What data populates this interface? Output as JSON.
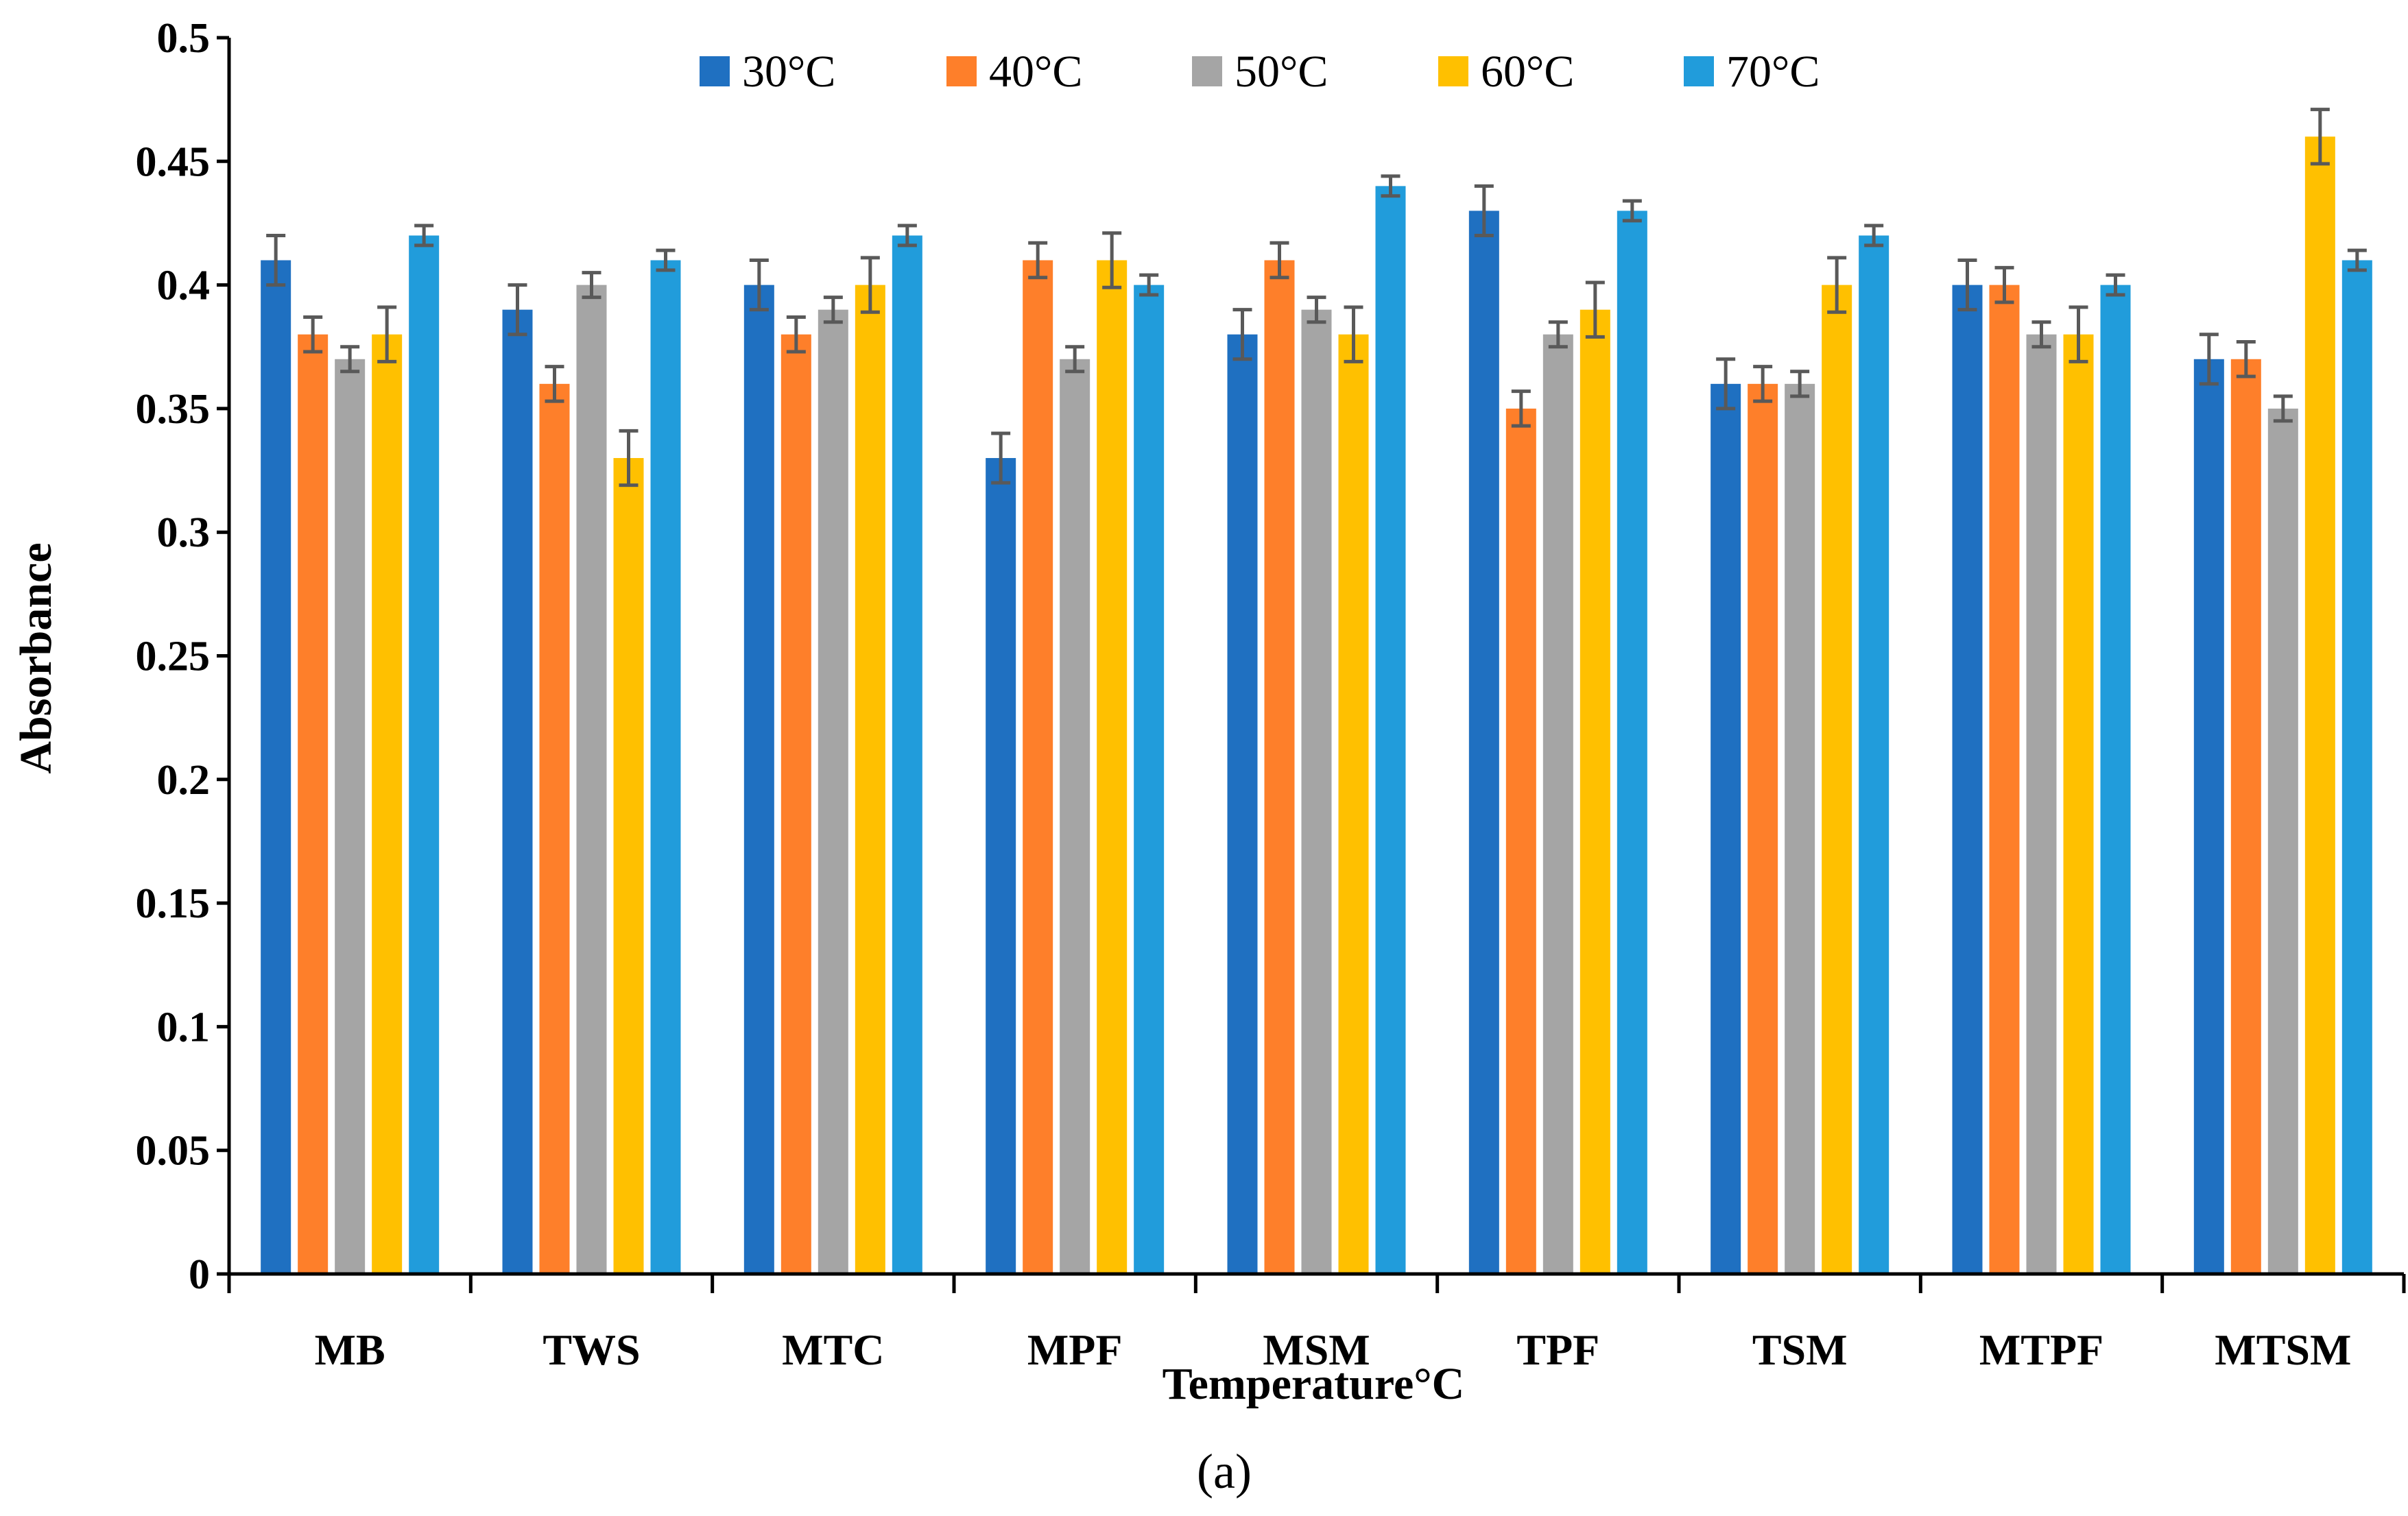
{
  "chart_data": {
    "type": "bar",
    "title": "",
    "xlabel": "Temperature°C",
    "ylabel": "Absorbance",
    "caption": "(a)",
    "ylim": [
      0,
      0.5
    ],
    "yticks": [
      "0",
      "0.05",
      "0.1",
      "0.15",
      "0.2",
      "0.25",
      "0.3",
      "0.35",
      "0.4",
      "0.45",
      "0.5"
    ],
    "grid": false,
    "legend_position": "top",
    "categories": [
      "MB",
      "TWS",
      "MTC",
      "MPF",
      "MSM",
      "TPF",
      "TSM",
      "MTPF",
      "MTSM"
    ],
    "series": [
      {
        "name": "30°C",
        "color": "#1F70C1",
        "values": [
          0.41,
          0.39,
          0.4,
          0.33,
          0.38,
          0.43,
          0.36,
          0.4,
          0.37
        ],
        "errors": [
          0.01,
          0.01,
          0.01,
          0.01,
          0.01,
          0.01,
          0.01,
          0.01,
          0.01
        ]
      },
      {
        "name": "40°C",
        "color": "#FE7F2A",
        "values": [
          0.38,
          0.36,
          0.38,
          0.41,
          0.41,
          0.35,
          0.36,
          0.4,
          0.37
        ],
        "errors": [
          0.007,
          0.007,
          0.007,
          0.007,
          0.007,
          0.007,
          0.007,
          0.007,
          0.007
        ]
      },
      {
        "name": "50°C",
        "color": "#A5A5A5",
        "values": [
          0.37,
          0.4,
          0.39,
          0.37,
          0.39,
          0.38,
          0.36,
          0.38,
          0.35
        ],
        "errors": [
          0.005,
          0.005,
          0.005,
          0.005,
          0.005,
          0.005,
          0.005,
          0.005,
          0.005
        ]
      },
      {
        "name": "60°C",
        "color": "#FFC000",
        "values": [
          0.38,
          0.33,
          0.4,
          0.41,
          0.38,
          0.39,
          0.4,
          0.38,
          0.46
        ],
        "errors": [
          0.011,
          0.011,
          0.011,
          0.011,
          0.011,
          0.011,
          0.011,
          0.011,
          0.011
        ]
      },
      {
        "name": "70°C",
        "color": "#219CDB",
        "values": [
          0.42,
          0.41,
          0.42,
          0.4,
          0.44,
          0.43,
          0.42,
          0.4,
          0.41
        ],
        "errors": [
          0.004,
          0.004,
          0.004,
          0.004,
          0.004,
          0.004,
          0.004,
          0.004,
          0.004
        ]
      }
    ],
    "error_bar_color": "#595959"
  }
}
